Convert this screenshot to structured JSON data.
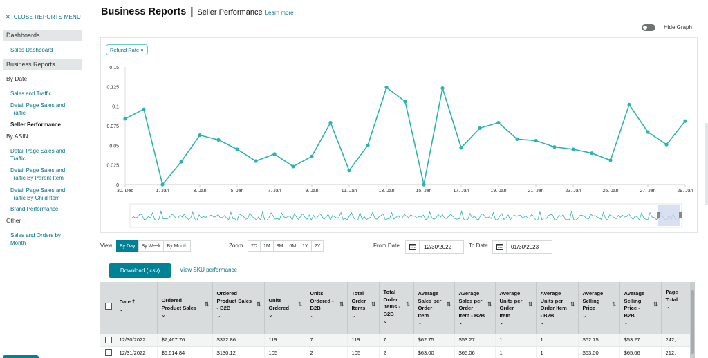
{
  "sidebar": {
    "close_label": "CLOSE REPORTS MENU",
    "dashboards_header": "Dashboards",
    "sales_dashboard": "Sales Dashboard",
    "business_reports_header": "Business Reports",
    "by_date_label": "By Date",
    "by_date_items": [
      "Sales and Traffic",
      "Detail Page Sales and Traffic",
      "Seller Performance"
    ],
    "by_asin_label": "By ASIN",
    "by_asin_items": [
      "Detail Page Sales and Traffic",
      "Detail Page Sales and Traffic By Parent Item",
      "Detail Page Sales and Traffic By Child Item",
      "Brand Performance"
    ],
    "other_label": "Other",
    "other_items": [
      "Sales and Orders by Month"
    ]
  },
  "header": {
    "title": "Business Reports",
    "separator": "|",
    "subtitle": "Seller Performance",
    "learn_more": "Learn more"
  },
  "hide_graph_label": "Hide Graph",
  "chip_label": "Refund Rate",
  "chip_close": "×",
  "chart_data": {
    "type": "line",
    "title": "",
    "xlabel": "",
    "ylabel": "",
    "ylim": [
      0,
      0.15
    ],
    "yticks": [
      "0",
      "0.025",
      "0.05",
      "0.075",
      "0.1",
      "0.125",
      "0.15"
    ],
    "xticks": [
      "30. Dec",
      "1. Jan",
      "3. Jan",
      "5. Jan",
      "7. Jan",
      "9. Jan",
      "11. Jan",
      "13. Jan",
      "15. Jan",
      "17. Jan",
      "19. Jan",
      "21. Jan",
      "23. Jan",
      "25. Jan",
      "27. Jan",
      "29. Jan"
    ],
    "grid": false,
    "color": "#2bb3ad",
    "series": [
      {
        "x": [
          "2022-12-30",
          "2022-12-31",
          "2023-01-01",
          "2023-01-02",
          "2023-01-03",
          "2023-01-04",
          "2023-01-05",
          "2023-01-06",
          "2023-01-07",
          "2023-01-08",
          "2023-01-09",
          "2023-01-10",
          "2023-01-11",
          "2023-01-12",
          "2023-01-13",
          "2023-01-14",
          "2023-01-15",
          "2023-01-16",
          "2023-01-17",
          "2023-01-18",
          "2023-01-19",
          "2023-01-20",
          "2023-01-21",
          "2023-01-22",
          "2023-01-23",
          "2023-01-24",
          "2023-01-25",
          "2023-01-26",
          "2023-01-27",
          "2023-01-28",
          "2023-01-29"
        ],
        "values": [
          0.084,
          0.096,
          0.0,
          0.029,
          0.063,
          0.057,
          0.045,
          0.03,
          0.039,
          0.023,
          0.036,
          0.079,
          0.018,
          0.05,
          0.124,
          0.106,
          0.0,
          0.123,
          0.047,
          0.072,
          0.079,
          0.058,
          0.056,
          0.048,
          0.045,
          0.04,
          0.031,
          0.102,
          0.067,
          0.051,
          0.081
        ]
      }
    ]
  },
  "controls": {
    "view_label": "View",
    "view_options": [
      "By Day",
      "By Week",
      "By Month"
    ],
    "view_selected": "By Day",
    "zoom_label": "Zoom",
    "zoom_options": [
      "7D",
      "1M",
      "3M",
      "6M",
      "1Y",
      "2Y"
    ],
    "from_label": "From Date",
    "from_value": "12/30/2022",
    "to_label": "To Date",
    "to_value": "01/30/2023"
  },
  "download_label": "Download (.csv)",
  "sku_link": "View SKU performance",
  "table": {
    "columns": [
      "Date",
      "Ordered Product Sales",
      "Ordered Product Sales - B2B",
      "Units Ordered",
      "Units Ordered - B2B",
      "Total Order Items",
      "Total Order Items - B2B",
      "Average Sales per Order Item",
      "Average Sales per Order Item - B2B",
      "Average Units per Order Item",
      "Average Units per Order Item - B2B",
      "Average Selling Price",
      "Average Selling Price - B2B",
      "Page Total"
    ],
    "rows": [
      [
        "12/30/2022",
        "$7,467.76",
        "$372.86",
        "119",
        "7",
        "119",
        "7",
        "$62.75",
        "$53.27",
        "1",
        "1",
        "$62.75",
        "$53.27",
        "242,"
      ],
      [
        "12/31/2022",
        "$6,614.84",
        "$130.12",
        "105",
        "2",
        "105",
        "2",
        "$63.00",
        "$65.06",
        "1",
        "1",
        "$63.00",
        "$65.06",
        "212,"
      ]
    ]
  }
}
